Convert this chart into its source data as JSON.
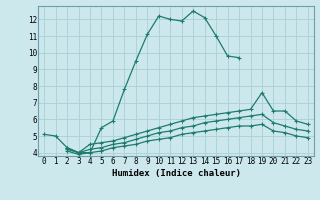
{
  "xlabel": "Humidex (Indice chaleur)",
  "bg_color": "#cce8ed",
  "grid_color": "#aad0d8",
  "line_color": "#1e7b6e",
  "spine_color": "#6e9ea8",
  "xlim": [
    -0.5,
    23.5
  ],
  "ylim": [
    3.8,
    12.8
  ],
  "yticks": [
    4,
    5,
    6,
    7,
    8,
    9,
    10,
    11,
    12
  ],
  "xticks": [
    0,
    1,
    2,
    3,
    4,
    5,
    6,
    7,
    8,
    9,
    10,
    11,
    12,
    13,
    14,
    15,
    16,
    17,
    18,
    19,
    20,
    21,
    22,
    23
  ],
  "series": [
    {
      "x": [
        0,
        1,
        2,
        3,
        4,
        5,
        6,
        7,
        8,
        9,
        10,
        11,
        12,
        13,
        14,
        15,
        16,
        17
      ],
      "y": [
        5.1,
        5.0,
        4.3,
        4.0,
        4.0,
        5.5,
        5.9,
        7.8,
        9.5,
        11.1,
        12.2,
        12.0,
        11.9,
        12.5,
        12.1,
        11.0,
        9.8,
        9.7
      ]
    },
    {
      "x": [
        2,
        3,
        4,
        5,
        6,
        7,
        8,
        9,
        10,
        11,
        12,
        13,
        14,
        15,
        16,
        17,
        18,
        19,
        20,
        21,
        22,
        23
      ],
      "y": [
        4.3,
        4.0,
        4.5,
        4.6,
        4.7,
        4.9,
        5.1,
        5.3,
        5.5,
        5.7,
        5.9,
        6.1,
        6.2,
        6.3,
        6.4,
        6.5,
        6.6,
        7.6,
        6.5,
        6.5,
        5.9,
        5.7
      ]
    },
    {
      "x": [
        2,
        3,
        4,
        5,
        6,
        7,
        8,
        9,
        10,
        11,
        12,
        13,
        14,
        15,
        16,
        17,
        18,
        19,
        20,
        21,
        22,
        23
      ],
      "y": [
        4.2,
        4.0,
        4.2,
        4.3,
        4.5,
        4.6,
        4.8,
        5.0,
        5.2,
        5.3,
        5.5,
        5.6,
        5.8,
        5.9,
        6.0,
        6.1,
        6.2,
        6.3,
        5.8,
        5.6,
        5.4,
        5.3
      ]
    },
    {
      "x": [
        2,
        3,
        4,
        5,
        6,
        7,
        8,
        9,
        10,
        11,
        12,
        13,
        14,
        15,
        16,
        17,
        18,
        19,
        20,
        21,
        22,
        23
      ],
      "y": [
        4.1,
        3.9,
        4.0,
        4.1,
        4.3,
        4.4,
        4.5,
        4.7,
        4.8,
        4.9,
        5.1,
        5.2,
        5.3,
        5.4,
        5.5,
        5.6,
        5.6,
        5.7,
        5.3,
        5.2,
        5.0,
        4.9
      ]
    }
  ]
}
